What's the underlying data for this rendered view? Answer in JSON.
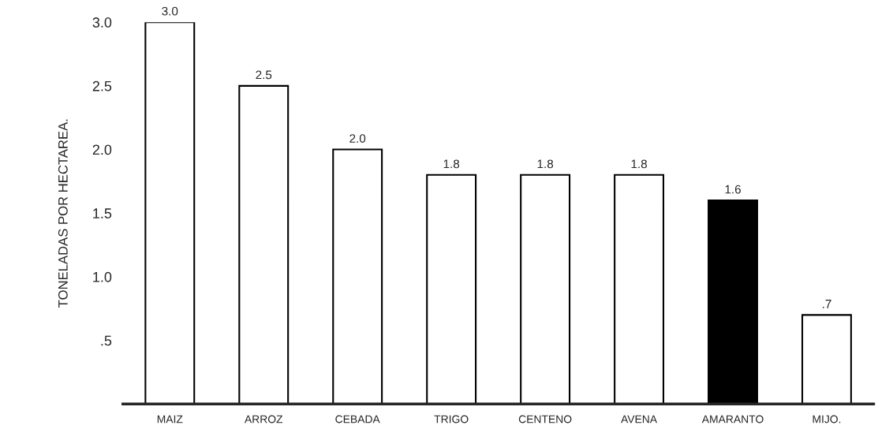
{
  "chart_data": {
    "type": "bar",
    "ylabel": "TONELADAS POR HECTAREA.",
    "categories": [
      "MAIZ",
      "ARROZ",
      "CEBADA",
      "TRIGO",
      "CENTENO",
      "AVENA",
      "AMARANTO",
      "MIJO."
    ],
    "values": [
      3.0,
      2.5,
      2.0,
      1.8,
      1.8,
      1.8,
      1.6,
      0.7
    ],
    "value_labels": [
      "3.0",
      "2.5",
      "2.0",
      "1.8",
      "1.8",
      "1.8",
      "1.6",
      ".7"
    ],
    "colors": [
      "#ffffff",
      "#ffffff",
      "#ffffff",
      "#ffffff",
      "#ffffff",
      "#ffffff",
      "#000000",
      "#ffffff"
    ],
    "ylim": [
      0,
      3.0
    ],
    "yticks": [
      {
        "value": 0.5,
        "label": ".5"
      },
      {
        "value": 1.0,
        "label": "1.0"
      },
      {
        "value": 1.5,
        "label": "1.5"
      },
      {
        "value": 2.0,
        "label": "2.0"
      },
      {
        "value": 2.5,
        "label": "2.5"
      },
      {
        "value": 3.0,
        "label": "3.0"
      }
    ],
    "grid": false,
    "legend": false
  }
}
